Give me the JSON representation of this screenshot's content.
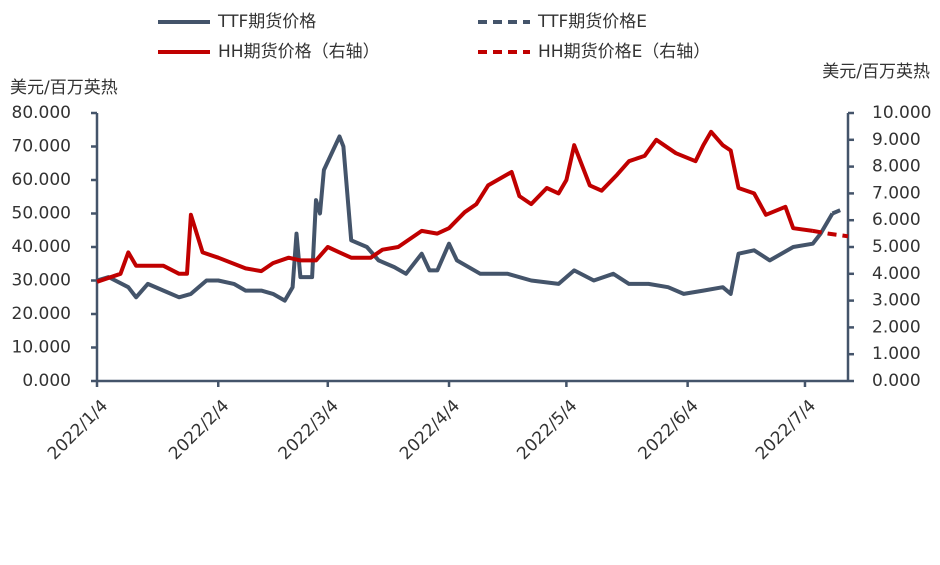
{
  "chart_data": {
    "type": "line",
    "y_label": "美元/百万英热",
    "y2_label": "美元/百万英热",
    "xlim": [
      "2022/1/4",
      "2022/7/15"
    ],
    "xticks": [
      "2022/1/4",
      "2022/2/4",
      "2022/3/4",
      "2022/4/4",
      "2022/5/4",
      "2022/6/4",
      "2022/7/4"
    ],
    "ylim": [
      0,
      80
    ],
    "yticks": [
      {
        "value": 0,
        "label": "0.000"
      },
      {
        "value": 10,
        "label": "10.000"
      },
      {
        "value": 20,
        "label": "20.000"
      },
      {
        "value": 30,
        "label": "30.000"
      },
      {
        "value": 40,
        "label": "40.000"
      },
      {
        "value": 50,
        "label": "50.000"
      },
      {
        "value": 60,
        "label": "60.000"
      },
      {
        "value": 70,
        "label": "70.000"
      },
      {
        "value": 80,
        "label": "80.000"
      }
    ],
    "y2lim": [
      0,
      10
    ],
    "y2ticks": [
      {
        "value": 0,
        "label": "0.000"
      },
      {
        "value": 1,
        "label": "1.000"
      },
      {
        "value": 2,
        "label": "2.000"
      },
      {
        "value": 3,
        "label": "3.000"
      },
      {
        "value": 4,
        "label": "4.000"
      },
      {
        "value": 5,
        "label": "5.000"
      },
      {
        "value": 6,
        "label": "6.000"
      },
      {
        "value": 7,
        "label": "7.000"
      },
      {
        "value": 8,
        "label": "8.000"
      },
      {
        "value": 9,
        "label": "9.000"
      },
      {
        "value": 10,
        "label": "10.000"
      }
    ],
    "series": [
      {
        "name": "TTF期货价格",
        "color": "#44546a",
        "dash": false,
        "axis": "y",
        "x": [
          "2022/1/4",
          "2022/1/7",
          "2022/1/12",
          "2022/1/14",
          "2022/1/17",
          "2022/1/21",
          "2022/1/25",
          "2022/1/28",
          "2022/2/1",
          "2022/2/4",
          "2022/2/8",
          "2022/2/11",
          "2022/2/15",
          "2022/2/18",
          "2022/2/21",
          "2022/2/23",
          "2022/2/24",
          "2022/2/25",
          "2022/2/28",
          "2022/3/1",
          "2022/3/2",
          "2022/3/3",
          "2022/3/7",
          "2022/3/8",
          "2022/3/10",
          "2022/3/14",
          "2022/3/17",
          "2022/3/21",
          "2022/3/24",
          "2022/3/28",
          "2022/3/30",
          "2022/4/1",
          "2022/4/4",
          "2022/4/6",
          "2022/4/12",
          "2022/4/19",
          "2022/4/25",
          "2022/5/2",
          "2022/5/6",
          "2022/5/11",
          "2022/5/16",
          "2022/5/20",
          "2022/5/25",
          "2022/5/30",
          "2022/6/3",
          "2022/6/8",
          "2022/6/13",
          "2022/6/15",
          "2022/6/17",
          "2022/6/21",
          "2022/6/25",
          "2022/7/1",
          "2022/7/6",
          "2022/7/8",
          "2022/7/11"
        ],
        "values": [
          30,
          31,
          28,
          25,
          29,
          27,
          25,
          26,
          30,
          30,
          29,
          27,
          27,
          26,
          24,
          28,
          44,
          31,
          31,
          54,
          50,
          63,
          73,
          70,
          42,
          40,
          36,
          34,
          32,
          38,
          33,
          33,
          41,
          36,
          32,
          32,
          30,
          29,
          33,
          30,
          32,
          29,
          29,
          28,
          26,
          27,
          28,
          26,
          38,
          39,
          36,
          40,
          41,
          44,
          50
        ]
      },
      {
        "name": "TTF期货价格E",
        "color": "#44546a",
        "dash": true,
        "axis": "y",
        "x": [
          "2022/7/11",
          "2022/7/13"
        ],
        "values": [
          50,
          51
        ]
      },
      {
        "name": "HH期货价格（右轴）",
        "color": "#c00000",
        "dash": false,
        "axis": "y2",
        "x": [
          "2022/1/4",
          "2022/1/10",
          "2022/1/12",
          "2022/1/14",
          "2022/1/21",
          "2022/1/25",
          "2022/1/27",
          "2022/1/28",
          "2022/1/31",
          "2022/2/4",
          "2022/2/11",
          "2022/2/15",
          "2022/2/18",
          "2022/2/22",
          "2022/2/25",
          "2022/3/1",
          "2022/3/4",
          "2022/3/7",
          "2022/3/10",
          "2022/3/15",
          "2022/3/18",
          "2022/3/22",
          "2022/3/28",
          "2022/4/1",
          "2022/4/4",
          "2022/4/8",
          "2022/4/11",
          "2022/4/14",
          "2022/4/20",
          "2022/4/22",
          "2022/4/25",
          "2022/4/29",
          "2022/5/2",
          "2022/5/4",
          "2022/5/6",
          "2022/5/10",
          "2022/5/13",
          "2022/5/17",
          "2022/5/20",
          "2022/5/24",
          "2022/5/27",
          "2022/6/1",
          "2022/6/6",
          "2022/6/8",
          "2022/6/10",
          "2022/6/13",
          "2022/6/15",
          "2022/6/17",
          "2022/6/21",
          "2022/6/24",
          "2022/6/29",
          "2022/7/1",
          "2022/7/6"
        ],
        "values": [
          3.7,
          4.0,
          4.8,
          4.3,
          4.3,
          4.0,
          4.0,
          6.2,
          4.8,
          4.6,
          4.2,
          4.1,
          4.4,
          4.6,
          4.5,
          4.5,
          5.0,
          4.8,
          4.6,
          4.6,
          4.9,
          5.0,
          5.6,
          5.5,
          5.7,
          6.3,
          6.6,
          7.3,
          7.8,
          6.9,
          6.6,
          7.2,
          7.0,
          7.5,
          8.8,
          7.3,
          7.1,
          7.7,
          8.2,
          8.4,
          9.0,
          8.5,
          8.2,
          8.8,
          9.3,
          8.8,
          8.6,
          7.2,
          7.0,
          6.2,
          6.5,
          5.7,
          5.6
        ]
      },
      {
        "name": "HH期货价格E（右轴）",
        "color": "#c00000",
        "dash": true,
        "axis": "y2",
        "x": [
          "2022/7/6",
          "2022/7/10",
          "2022/7/15"
        ],
        "values": [
          5.6,
          5.5,
          5.4
        ]
      }
    ]
  }
}
